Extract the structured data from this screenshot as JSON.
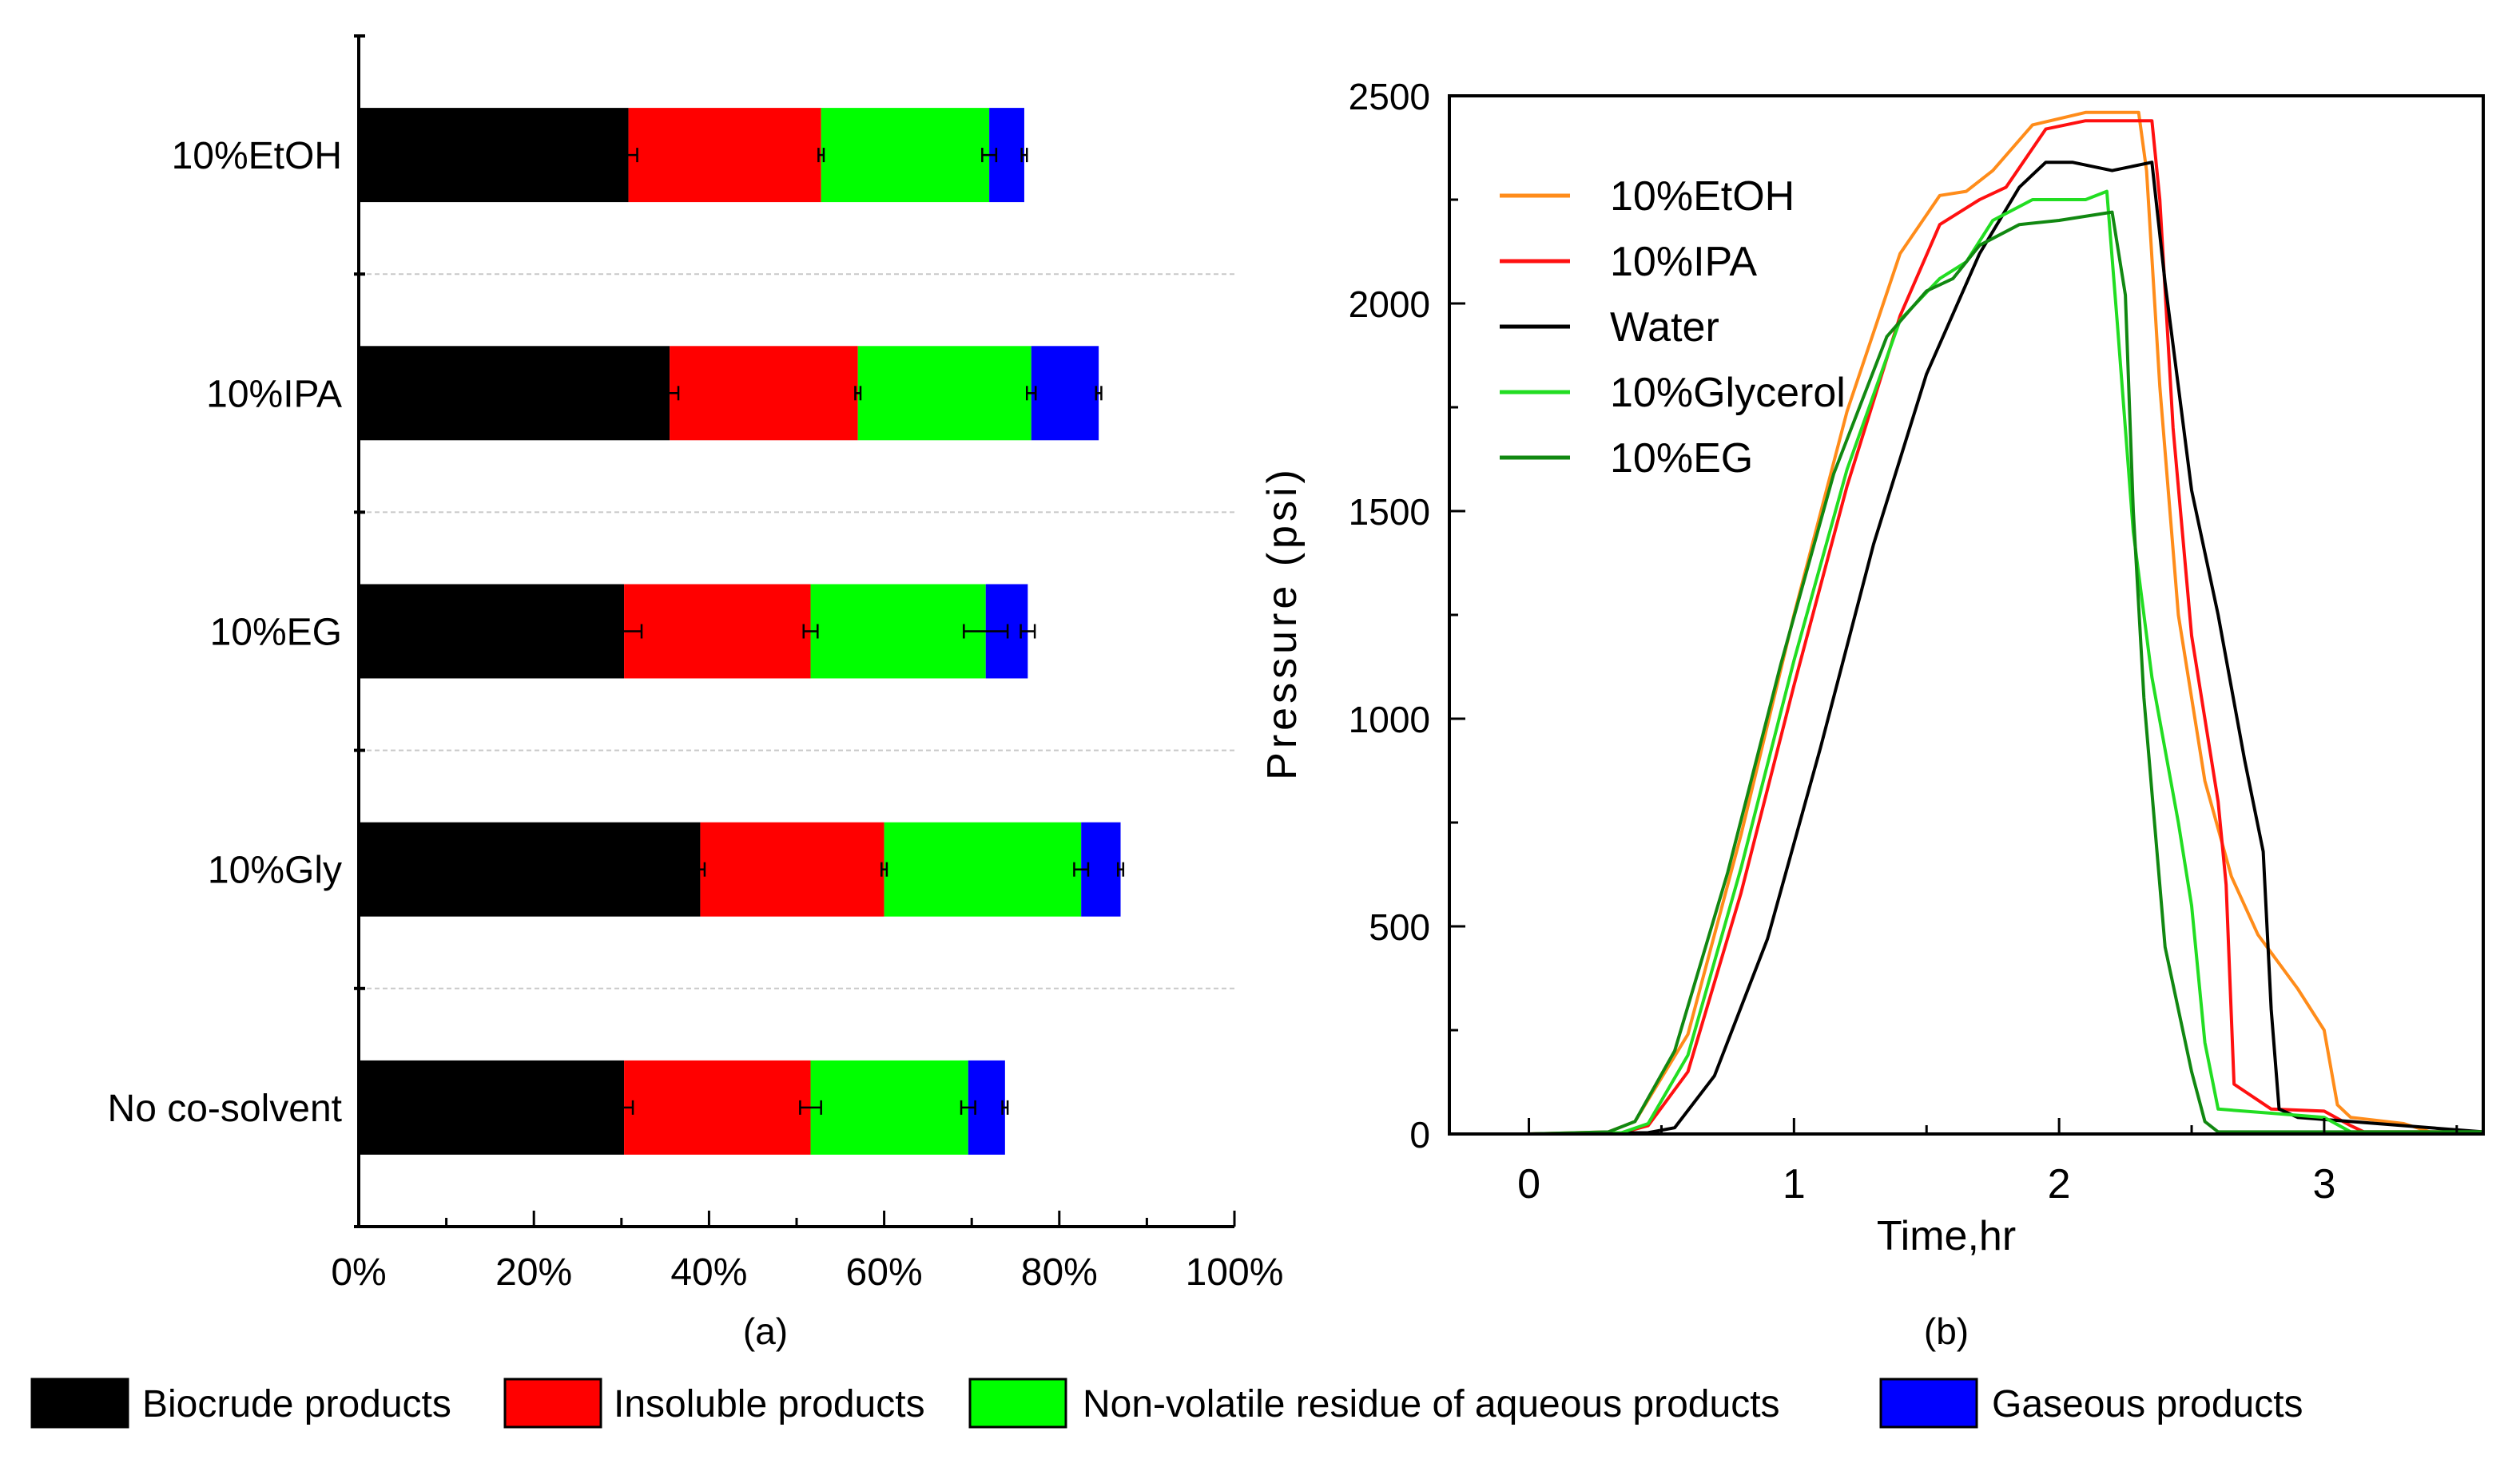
{
  "chart_data": [
    {
      "type": "bar",
      "orientation": "horizontal",
      "stacked": true,
      "caption": "(a)",
      "categories": [
        "10%EtOH",
        "10%IPA",
        "10%EG",
        "10%Gly",
        "No co-solvent"
      ],
      "xticks": [
        "0%",
        "20%",
        "40%",
        "60%",
        "80%",
        "100%"
      ],
      "xlim": [
        0,
        100
      ],
      "grid": "horizontal dashed separators",
      "series": [
        {
          "name": "Biocrude products",
          "color": "#000000",
          "values": [
            30.8,
            35.5,
            30.3,
            39.0,
            30.3
          ],
          "errors": [
            1.0,
            1.0,
            2.0,
            0.5,
            1.0
          ]
        },
        {
          "name": "Insoluble products",
          "color": "#ff0000",
          "values": [
            22.0,
            21.5,
            21.3,
            21.0,
            21.3
          ],
          "errors": [
            0.3,
            0.3,
            0.8,
            0.3,
            1.2
          ]
        },
        {
          "name": "Non-volatile residue of aqueous products",
          "color": "#00ff00",
          "values": [
            19.2,
            19.8,
            20.0,
            22.5,
            18.0
          ],
          "errors": [
            0.8,
            0.5,
            2.5,
            0.8,
            0.8
          ]
        },
        {
          "name": "Gaseous products",
          "color": "#0000ff",
          "values": [
            4.0,
            7.7,
            4.8,
            4.5,
            4.2
          ],
          "errors": [
            0.3,
            0.3,
            0.8,
            0.3,
            0.3
          ]
        }
      ],
      "legend_position": "bottom"
    },
    {
      "type": "line",
      "caption": "(b)",
      "xlabel": "Time,hr",
      "ylabel": "Pressure (psi)",
      "xlim": [
        -0.3,
        3.6
      ],
      "ylim": [
        0,
        2500
      ],
      "xticks": [
        0,
        1,
        2,
        3
      ],
      "yticks": [
        0,
        500,
        1000,
        1500,
        2000,
        2500
      ],
      "legend_position": "top-left",
      "series": [
        {
          "name": "10%EtOH",
          "color": "#ff8c1a",
          "x": [
            0,
            0.3,
            0.4,
            0.6,
            0.8,
            1.0,
            1.2,
            1.4,
            1.55,
            1.65,
            1.75,
            1.9,
            2.1,
            2.3,
            2.33,
            2.38,
            2.45,
            2.55,
            2.65,
            2.75,
            2.9,
            3.0,
            3.05,
            3.1,
            3.3,
            3.4,
            3.6
          ],
          "y": [
            0,
            5,
            30,
            240,
            720,
            1250,
            1740,
            2120,
            2260,
            2270,
            2320,
            2430,
            2460,
            2460,
            2320,
            1800,
            1250,
            850,
            620,
            480,
            350,
            250,
            70,
            40,
            25,
            5,
            5
          ]
        },
        {
          "name": "10%IPA",
          "color": "#ff1010",
          "x": [
            0,
            0.35,
            0.45,
            0.6,
            0.8,
            1.0,
            1.2,
            1.4,
            1.55,
            1.7,
            1.8,
            1.95,
            2.1,
            2.35,
            2.38,
            2.43,
            2.5,
            2.6,
            2.63,
            2.66,
            2.8,
            3.0,
            3.1,
            3.15,
            3.6
          ],
          "y": [
            0,
            3,
            20,
            150,
            580,
            1080,
            1560,
            1970,
            2190,
            2250,
            2280,
            2420,
            2440,
            2440,
            2250,
            1700,
            1200,
            800,
            600,
            120,
            60,
            55,
            20,
            5,
            5
          ]
        },
        {
          "name": "Water",
          "color": "#000000",
          "x": [
            0,
            0.45,
            0.55,
            0.7,
            0.9,
            1.1,
            1.3,
            1.5,
            1.7,
            1.85,
            1.95,
            2.05,
            2.2,
            2.35,
            2.4,
            2.5,
            2.6,
            2.7,
            2.77,
            2.8,
            2.83,
            2.9,
            3.1,
            3.6
          ],
          "y": [
            0,
            3,
            15,
            140,
            470,
            930,
            1420,
            1830,
            2120,
            2280,
            2340,
            2340,
            2320,
            2340,
            2050,
            1550,
            1250,
            900,
            680,
            300,
            60,
            40,
            30,
            5
          ]
        },
        {
          "name": "10%Glycerol",
          "color": "#22dd22",
          "x": [
            0,
            0.35,
            0.45,
            0.6,
            0.8,
            1.0,
            1.2,
            1.4,
            1.55,
            1.65,
            1.75,
            1.9,
            2.1,
            2.18,
            2.22,
            2.28,
            2.35,
            2.45,
            2.5,
            2.55,
            2.6,
            2.8,
            3.0,
            3.1,
            3.6
          ],
          "y": [
            0,
            3,
            25,
            190,
            640,
            1140,
            1600,
            1960,
            2060,
            2100,
            2200,
            2250,
            2250,
            2270,
            1950,
            1450,
            1100,
            750,
            550,
            220,
            60,
            50,
            40,
            5,
            5
          ]
        },
        {
          "name": "10%EG",
          "color": "#118811",
          "x": [
            0,
            0.3,
            0.4,
            0.55,
            0.75,
            0.95,
            1.15,
            1.35,
            1.5,
            1.6,
            1.7,
            1.85,
            2.0,
            2.2,
            2.25,
            2.28,
            2.32,
            2.4,
            2.5,
            2.55,
            2.6,
            3.6
          ],
          "y": [
            0,
            5,
            30,
            200,
            630,
            1130,
            1590,
            1920,
            2030,
            2060,
            2140,
            2190,
            2200,
            2220,
            2020,
            1500,
            1050,
            450,
            150,
            30,
            5,
            5
          ]
        }
      ]
    }
  ],
  "legend": [
    {
      "label": "Biocrude products",
      "color": "#000000"
    },
    {
      "label": "Insoluble products",
      "color": "#ff0000"
    },
    {
      "label": "Non-volatile residue of aqueous products",
      "color": "#00ff00"
    },
    {
      "label": "Gaseous products",
      "color": "#0000ff"
    }
  ]
}
